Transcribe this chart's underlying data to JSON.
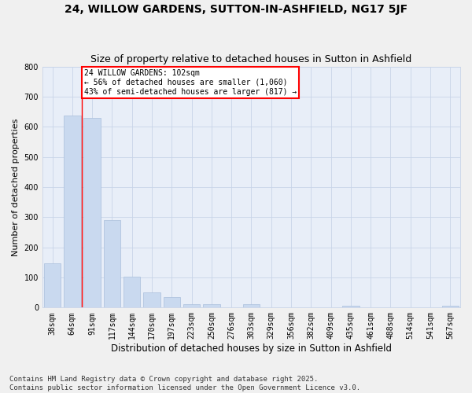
{
  "title": "24, WILLOW GARDENS, SUTTON-IN-ASHFIELD, NG17 5JF",
  "subtitle": "Size of property relative to detached houses in Sutton in Ashfield",
  "xlabel": "Distribution of detached houses by size in Sutton in Ashfield",
  "ylabel": "Number of detached properties",
  "categories": [
    "38sqm",
    "64sqm",
    "91sqm",
    "117sqm",
    "144sqm",
    "170sqm",
    "197sqm",
    "223sqm",
    "250sqm",
    "276sqm",
    "303sqm",
    "329sqm",
    "356sqm",
    "382sqm",
    "409sqm",
    "435sqm",
    "461sqm",
    "488sqm",
    "514sqm",
    "541sqm",
    "567sqm"
  ],
  "values": [
    148,
    638,
    630,
    290,
    103,
    50,
    35,
    12,
    12,
    0,
    10,
    0,
    0,
    0,
    0,
    5,
    0,
    0,
    0,
    0,
    5
  ],
  "bar_color": "#c9d9ef",
  "bar_edge_color": "#aabfdb",
  "grid_color": "#c8d4e8",
  "background_color": "#e8eef8",
  "fig_background": "#f0f0f0",
  "annotation_text": "24 WILLOW GARDENS: 102sqm\n← 56% of detached houses are smaller (1,060)\n43% of semi-detached houses are larger (817) →",
  "vline_bin": 2,
  "ylim": [
    0,
    800
  ],
  "yticks": [
    0,
    100,
    200,
    300,
    400,
    500,
    600,
    700,
    800
  ],
  "footer": "Contains HM Land Registry data © Crown copyright and database right 2025.\nContains public sector information licensed under the Open Government Licence v3.0.",
  "title_fontsize": 10,
  "subtitle_fontsize": 9,
  "xlabel_fontsize": 8.5,
  "ylabel_fontsize": 8,
  "tick_fontsize": 7,
  "footer_fontsize": 6.5
}
